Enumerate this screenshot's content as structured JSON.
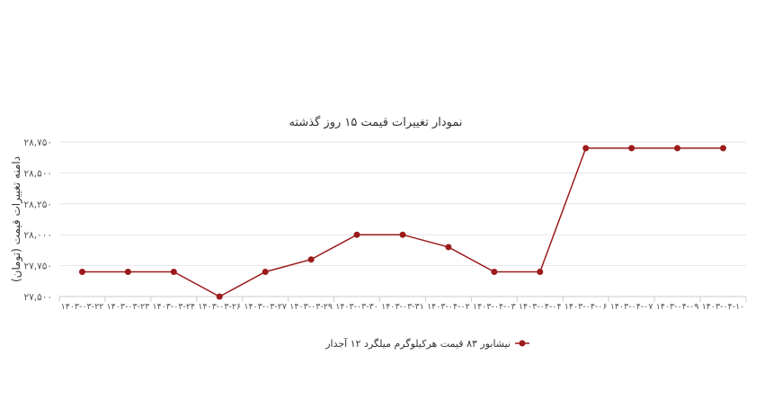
{
  "chart_data": {
    "type": "line",
    "title": "نمودار تغییرات قیمت ۱۵ روز گذشته",
    "ylabel": "دامنه تغییرات قیمت (تومان)",
    "xlabel": "",
    "ylim": [
      27500,
      28750
    ],
    "yticks": [
      "۲۷,۵۰۰",
      "۲۷,۷۵۰",
      "۲۸,۰۰۰",
      "۲۸,۲۵۰",
      "۲۸,۵۰۰",
      "۲۸,۷۵۰"
    ],
    "ytick_values": [
      27500,
      27750,
      28000,
      28250,
      28500,
      28750
    ],
    "categories": [
      "۱۴۰۳-۰۳-۲۲",
      "۱۴۰۳-۰۳-۲۳",
      "۱۴۰۳-۰۳-۲۴",
      "۱۴۰۳-۰۳-۲۶",
      "۱۴۰۳-۰۳-۲۷",
      "۱۴۰۳-۰۳-۲۹",
      "۱۴۰۳-۰۳-۳۰",
      "۱۴۰۳-۰۳-۳۱",
      "۱۴۰۳-۰۴-۰۲",
      "۱۴۰۳-۰۴-۰۳",
      "۱۴۰۳-۰۴-۰۴",
      "۱۴۰۳-۰۴-۰۶",
      "۱۴۰۳-۰۴-۰۷",
      "۱۴۰۳-۰۴-۰۹",
      "۱۴۰۳-۰۴-۱۰"
    ],
    "series": [
      {
        "name": "نیشابور ۸۳ قیمت هرکیلوگرم میلگرد ۱۲ آجدار",
        "values": [
          27700,
          27700,
          27700,
          27500,
          27700,
          27800,
          28000,
          28000,
          27900,
          27700,
          27700,
          28700,
          28700,
          28700,
          28700
        ]
      }
    ],
    "grid": true,
    "legend_position": "bottom-center",
    "colors": {
      "series": "#9b1b1b",
      "grid": "#e6e6e6",
      "text": "#333333"
    }
  }
}
